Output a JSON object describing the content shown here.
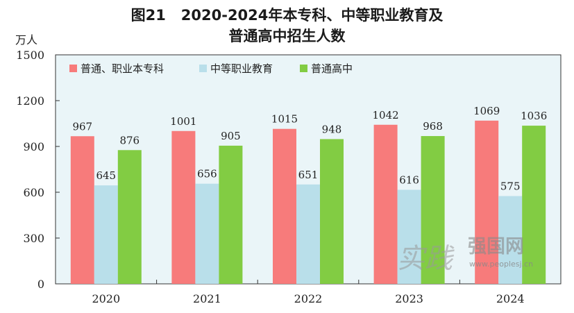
{
  "figure_label": "图21",
  "title_line1": "2020-2024年本专科、中等职业教育及",
  "title_line2": "普通高中招生人数",
  "watermark": {
    "text1": "实践",
    "text2": "强国网",
    "url": "www.peoplesj.cn"
  },
  "colors": {
    "plot_bg": "#eaf5f8",
    "series": [
      "#f77b7b",
      "#b9dfea",
      "#82cc43"
    ]
  },
  "chart_data": {
    "type": "bar",
    "ylabel": "万人",
    "ylim": [
      0,
      1500
    ],
    "yticks": [
      0,
      300,
      600,
      900,
      1200,
      1500
    ],
    "grid": false,
    "legend_position": "top-left",
    "categories": [
      "2020",
      "2021",
      "2022",
      "2023",
      "2024"
    ],
    "series": [
      {
        "name": "普通、职业本专科",
        "values": [
          967,
          1001,
          1015,
          1042,
          1069
        ]
      },
      {
        "name": "中等职业教育",
        "values": [
          645,
          656,
          651,
          616,
          575
        ]
      },
      {
        "name": "普通高中",
        "values": [
          876,
          905,
          948,
          968,
          1036
        ]
      }
    ]
  }
}
